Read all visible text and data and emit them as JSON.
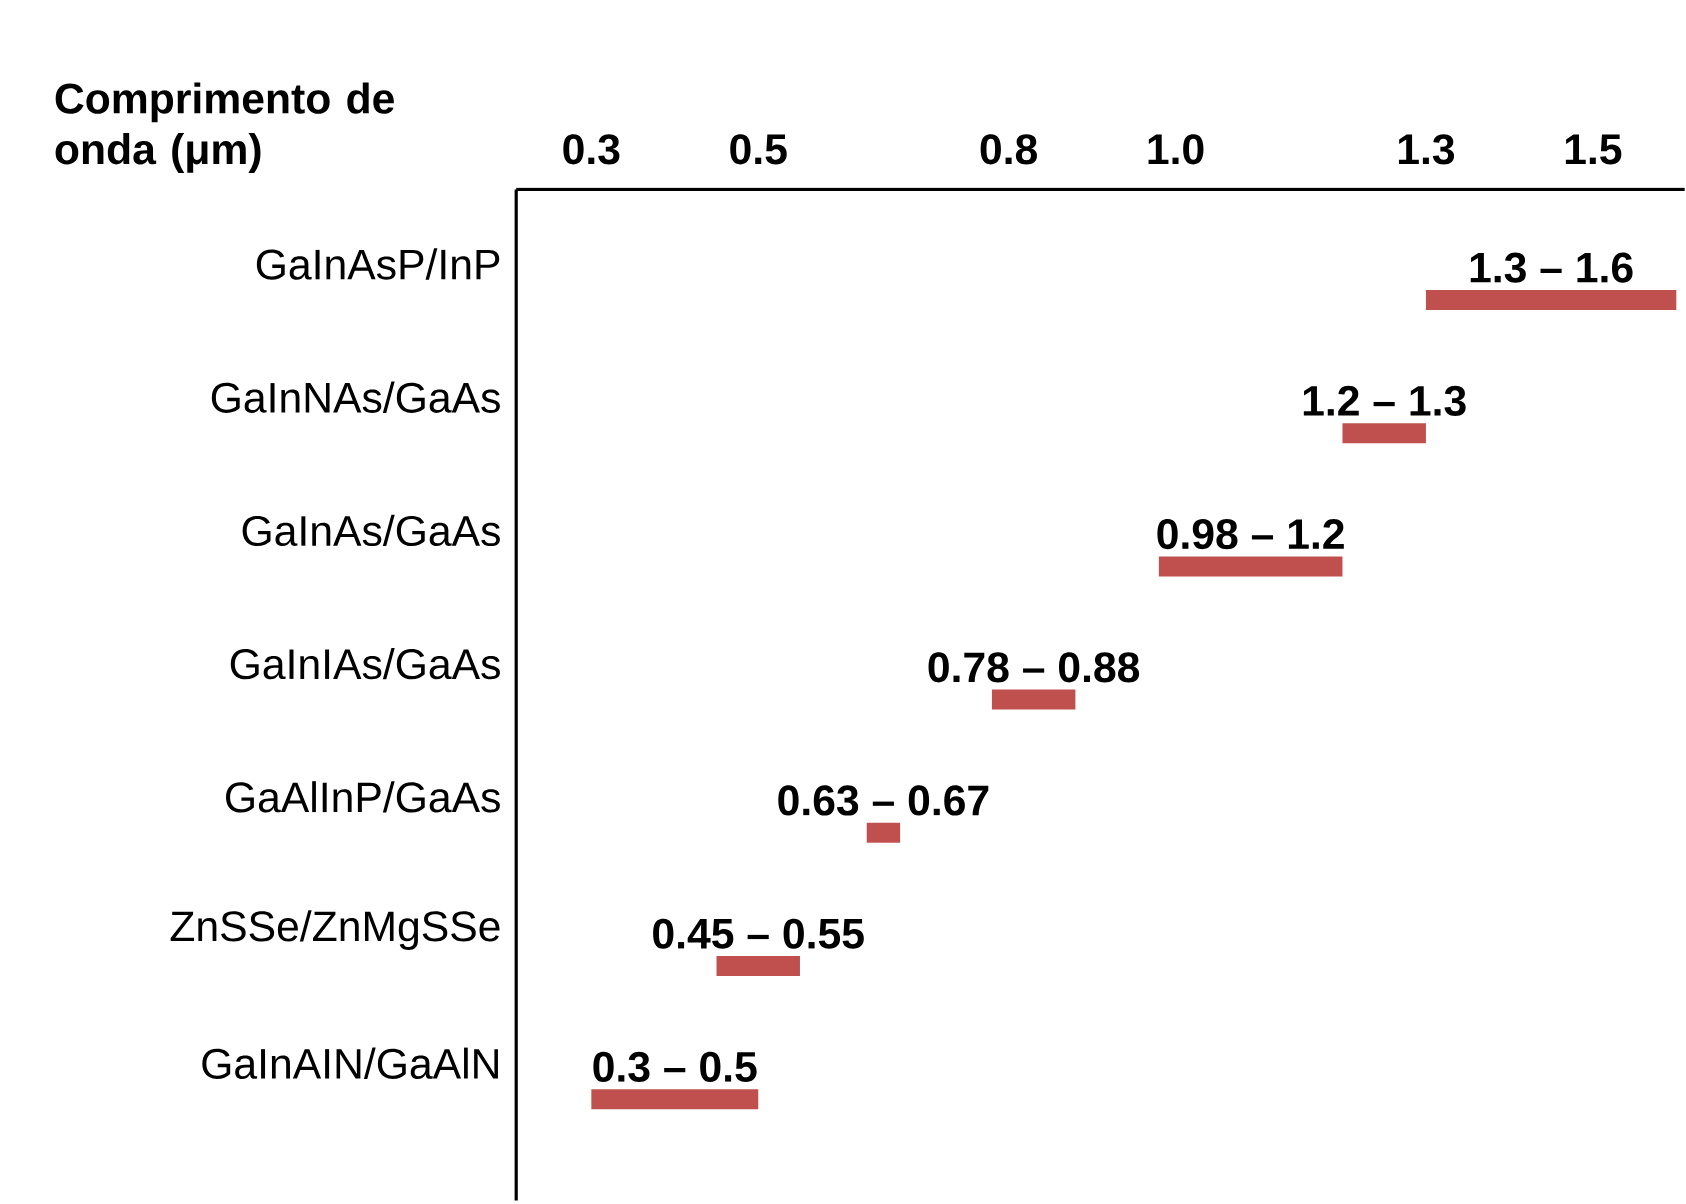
{
  "chart_data": {
    "type": "bar",
    "orientation": "horizontal",
    "xlabel": "Comprimento de onda (μm)",
    "categories": [
      "GaInAsP/InP",
      "GaInNAs/GaAs",
      "GaInAs/GaAs",
      "GaInIAs/GaAs",
      "GaAlInP/GaAs",
      "ZnSSe/ZnMgSSe",
      "GaInAIN/GaAlN"
    ],
    "base": [
      1.3,
      1.2,
      0.98,
      0.78,
      0.63,
      0.45,
      0.3
    ],
    "values": [
      0.3,
      0.1,
      0.22,
      0.1,
      0.04,
      0.1,
      0.2
    ],
    "annotations": [
      {
        "text": "1.3 – 1.6",
        "x": 1.45,
        "y": "GaInAsP/InP"
      },
      {
        "text": "1.2 – 1.3",
        "x": 1.25,
        "y": "GaInNAs/GaAs"
      },
      {
        "text": "0.98 – 1.2",
        "x": 1.09,
        "y": "GaInAs/GaAs"
      },
      {
        "text": "0.78 – 0.88",
        "x": 0.83,
        "y": "GaInIAs/GaAs"
      },
      {
        "text": "0.63 – 0.67",
        "x": 0.65,
        "y": "GaAlInP/GaAs"
      },
      {
        "text": "0.45 – 0.55",
        "x": 0.5,
        "y": "ZnSSe/ZnMgSSe"
      },
      {
        "text": "0.3 – 0.5",
        "x": 0.4,
        "y": "GaInAIN/GaAlN"
      }
    ],
    "color": "#c0504d",
    "xlim": [
      0.21,
      1.61
    ],
    "xticks": [
      0.3,
      0.5,
      0.8,
      {
        "value": 1.0,
        "label": "1.0"
      },
      1.3,
      1.5
    ]
  }
}
